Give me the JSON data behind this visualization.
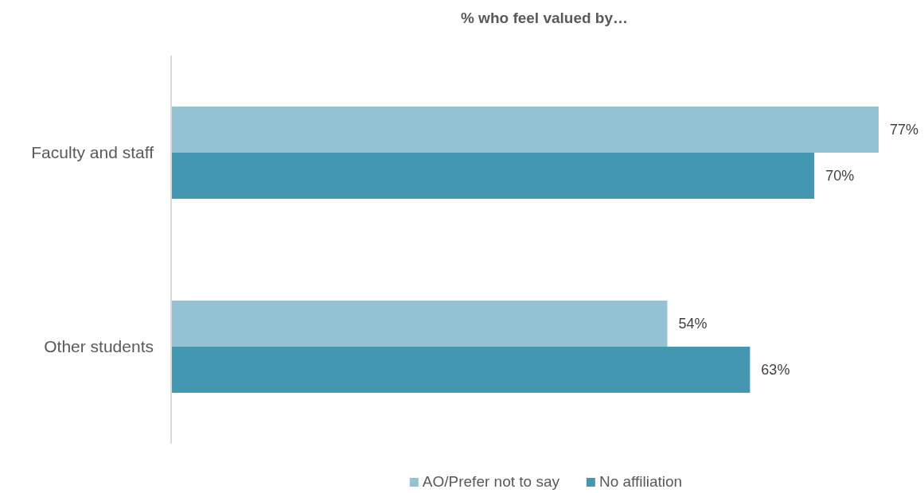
{
  "chart_data": {
    "type": "bar",
    "orientation": "horizontal",
    "title": "% who feel valued by…",
    "categories": [
      "Faculty and staff",
      "Other students"
    ],
    "series": [
      {
        "name": "AO/Prefer not to say",
        "color": "#93c2d3",
        "values": [
          77,
          54
        ],
        "value_labels": [
          "77%",
          "54%"
        ]
      },
      {
        "name": "No affiliation",
        "color": "#4397b0",
        "values": [
          70,
          63
        ],
        "value_labels": [
          "70%",
          "63%"
        ]
      }
    ],
    "legend": "bottom"
  }
}
